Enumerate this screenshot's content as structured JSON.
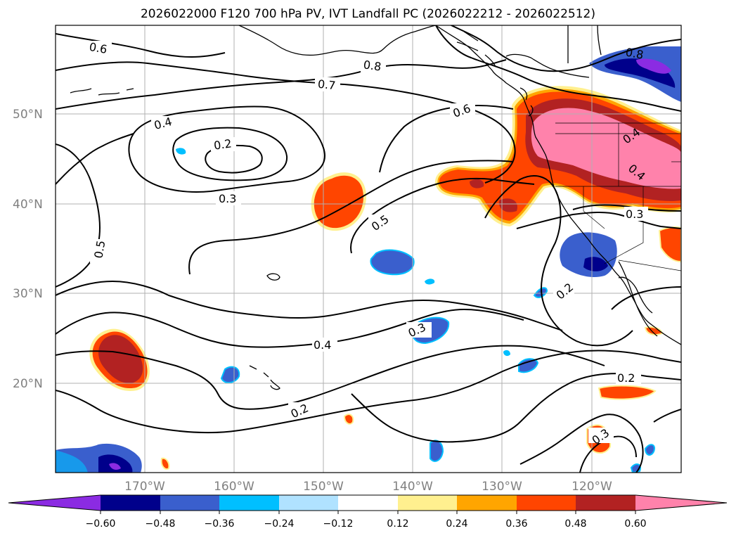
{
  "title": "2026022000 F120 700 hPa PV, IVT Landfall PC (2026022212 - 2026022512)",
  "axes": {
    "lat_labels": [
      "50°N",
      "40°N",
      "30°N",
      "20°N"
    ],
    "lon_labels": [
      "170°W",
      "160°W",
      "150°W",
      "140°W",
      "130°W",
      "120°W"
    ]
  },
  "contour_labels": [
    "0.6",
    "0.8",
    "0.7",
    "0.6",
    "0.4",
    "0.2",
    "0.3",
    "0.5",
    "0.5",
    "0.4",
    "0.3",
    "0.4",
    "0.2",
    "0.2",
    "0.3",
    "0.4",
    "0.3",
    "0.8",
    "0.4"
  ],
  "colorbar": {
    "ticks": [
      "−0.60",
      "−0.48",
      "−0.36",
      "−0.24",
      "−0.12",
      "0.12",
      "0.24",
      "0.36",
      "0.48",
      "0.60"
    ],
    "colors": [
      "#8b2be2",
      "#00008b",
      "#3a5fcd",
      "#00bfff",
      "#b0e2ff",
      "#ffffff",
      "#fff08f",
      "#ffa500",
      "#ff4500",
      "#b22222",
      "#ff82ab"
    ]
  }
}
